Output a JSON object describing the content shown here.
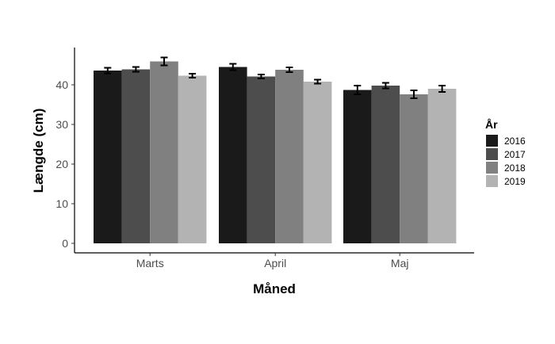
{
  "chart_data": {
    "type": "bar",
    "xlabel": "Måned",
    "ylabel": "Længde (cm)",
    "categories": [
      "Marts",
      "April",
      "Maj"
    ],
    "ylim": [
      0,
      48
    ],
    "yticks": [
      0,
      10,
      20,
      30,
      40
    ],
    "grid": false,
    "legend": {
      "title": "År",
      "position": "right"
    },
    "series": [
      {
        "name": "2016",
        "color": "#1a1a1a",
        "values": [
          43.6,
          44.5,
          38.7
        ],
        "errors": [
          0.7,
          0.8,
          1.1
        ]
      },
      {
        "name": "2017",
        "color": "#4d4d4d",
        "values": [
          43.9,
          42.1,
          39.8
        ],
        "errors": [
          0.6,
          0.5,
          0.7
        ]
      },
      {
        "name": "2018",
        "color": "#808080",
        "values": [
          45.9,
          43.8,
          37.6
        ],
        "errors": [
          1.0,
          0.6,
          1.0
        ]
      },
      {
        "name": "2019",
        "color": "#b3b3b3",
        "values": [
          42.3,
          40.8,
          39.0
        ],
        "errors": [
          0.5,
          0.5,
          0.8
        ]
      }
    ]
  }
}
